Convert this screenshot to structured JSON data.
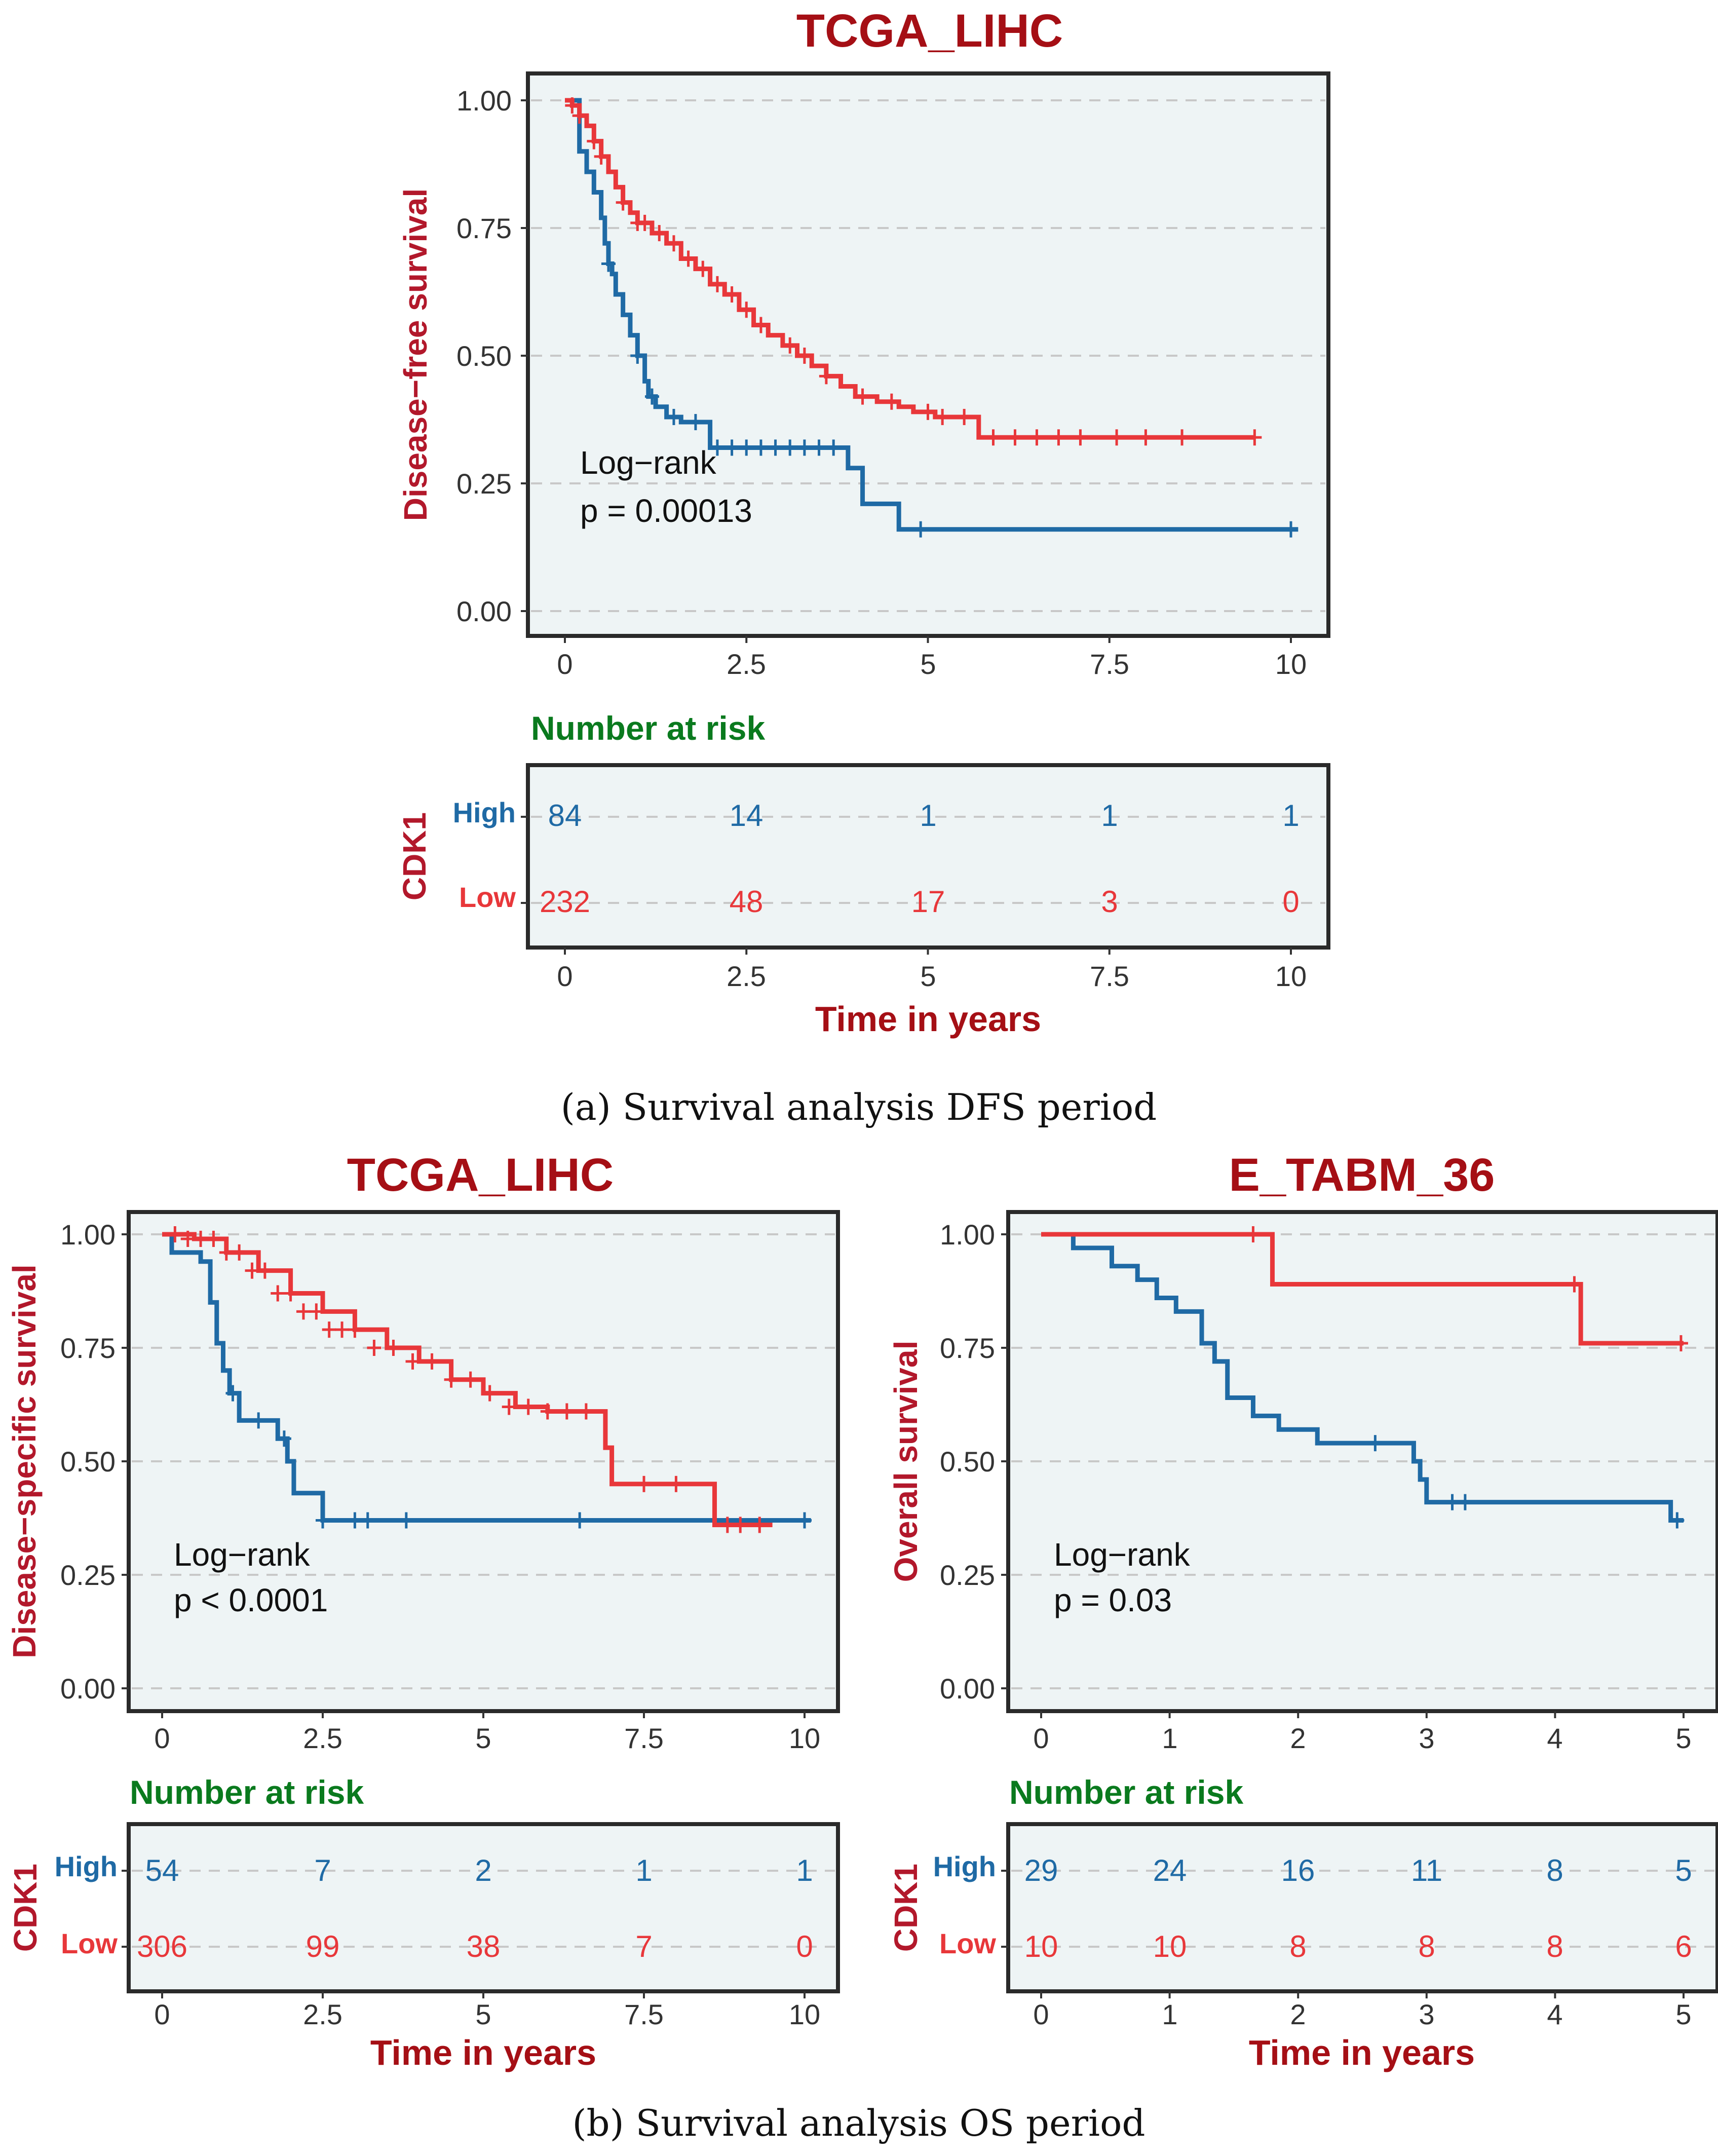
{
  "colors": {
    "high": "#1f6aa5",
    "low": "#e8373a",
    "title": "#a50f15",
    "number_at_risk": "#0a7a1e"
  },
  "captions": {
    "a": "(a) Survival analysis DFS period",
    "b": "(b) Survival analysis OS period"
  },
  "chart_data": [
    {
      "id": "dfs",
      "type": "line",
      "step": true,
      "title": "TCGA_LIHC",
      "xlabel": "Time in years",
      "ylabel": "Disease−free survival",
      "xlim": [
        0,
        10
      ],
      "ylim": [
        0,
        1
      ],
      "xticks": [
        "0",
        "2.5",
        "5",
        "7.5",
        "10"
      ],
      "xtick_values": [
        0,
        2.5,
        5,
        7.5,
        10
      ],
      "yticks": [
        "0.00",
        "0.25",
        "0.50",
        "0.75",
        "1.00"
      ],
      "ytick_values": [
        0,
        0.25,
        0.5,
        0.75,
        1
      ],
      "annotation": [
        "Log−rank",
        "p = 0.00013"
      ],
      "series": [
        {
          "name": "High",
          "color": "#1f6aa5",
          "x": [
            0,
            0.2,
            0.3,
            0.4,
            0.5,
            0.55,
            0.6,
            0.65,
            0.7,
            0.8,
            0.9,
            1.0,
            1.1,
            1.15,
            1.25,
            1.4,
            1.6,
            2.0,
            3.9,
            4.1,
            4.6,
            10.1
          ],
          "y": [
            1.0,
            0.9,
            0.86,
            0.82,
            0.77,
            0.72,
            0.68,
            0.66,
            0.62,
            0.58,
            0.54,
            0.5,
            0.45,
            0.42,
            0.4,
            0.38,
            0.37,
            0.32,
            0.28,
            0.21,
            0.16,
            0.16
          ],
          "censor_x": [
            0.6,
            1.0,
            1.2,
            1.5,
            1.8,
            2.1,
            2.3,
            2.5,
            2.7,
            2.9,
            3.1,
            3.3,
            3.5,
            3.7,
            4.9,
            10.0
          ],
          "censor_y": [
            0.68,
            0.5,
            0.42,
            0.38,
            0.37,
            0.32,
            0.32,
            0.32,
            0.32,
            0.32,
            0.32,
            0.32,
            0.32,
            0.32,
            0.16,
            0.16
          ]
        },
        {
          "name": "Low",
          "color": "#e8373a",
          "x": [
            0,
            0.1,
            0.2,
            0.3,
            0.4,
            0.5,
            0.6,
            0.7,
            0.8,
            0.9,
            1.0,
            1.2,
            1.4,
            1.6,
            1.8,
            2.0,
            2.2,
            2.4,
            2.6,
            2.8,
            3.0,
            3.2,
            3.4,
            3.6,
            3.8,
            4.0,
            4.3,
            4.6,
            4.8,
            5.1,
            5.4,
            5.7,
            9.5
          ],
          "y": [
            1.0,
            0.99,
            0.97,
            0.95,
            0.92,
            0.89,
            0.86,
            0.83,
            0.8,
            0.78,
            0.76,
            0.74,
            0.72,
            0.69,
            0.67,
            0.64,
            0.62,
            0.59,
            0.56,
            0.54,
            0.52,
            0.5,
            0.48,
            0.46,
            0.44,
            0.42,
            0.41,
            0.4,
            0.39,
            0.38,
            0.38,
            0.34,
            0.34
          ],
          "censor_x": [
            0.1,
            0.2,
            0.4,
            0.5,
            0.8,
            1.0,
            1.1,
            1.3,
            1.5,
            1.7,
            1.9,
            2.1,
            2.3,
            2.5,
            2.7,
            3.1,
            3.3,
            3.6,
            4.1,
            4.5,
            5.0,
            5.2,
            5.5,
            5.9,
            6.2,
            6.5,
            6.8,
            7.1,
            7.6,
            8.0,
            8.5,
            9.5
          ],
          "censor_y": [
            0.99,
            0.97,
            0.92,
            0.89,
            0.8,
            0.76,
            0.76,
            0.74,
            0.72,
            0.69,
            0.67,
            0.64,
            0.62,
            0.59,
            0.56,
            0.52,
            0.5,
            0.46,
            0.42,
            0.41,
            0.39,
            0.38,
            0.38,
            0.34,
            0.34,
            0.34,
            0.34,
            0.34,
            0.34,
            0.34,
            0.34,
            0.34
          ]
        }
      ],
      "risk_table": {
        "title": "Number at risk",
        "strata_label": "CDK1",
        "groups": [
          {
            "name": "High",
            "values": [
              "84",
              "14",
              "1",
              "1",
              "1"
            ]
          },
          {
            "name": "Low",
            "values": [
              "232",
              "48",
              "17",
              "3",
              "0"
            ]
          }
        ]
      }
    },
    {
      "id": "dss",
      "type": "line",
      "step": true,
      "title": "TCGA_LIHC",
      "xlabel": "Time in years",
      "ylabel": "Disease−specific survival",
      "xlim": [
        0,
        10
      ],
      "ylim": [
        0,
        1
      ],
      "xticks": [
        "0",
        "2.5",
        "5",
        "7.5",
        "10"
      ],
      "xtick_values": [
        0,
        2.5,
        5,
        7.5,
        10
      ],
      "yticks": [
        "0.00",
        "0.25",
        "0.50",
        "0.75",
        "1.00"
      ],
      "ytick_values": [
        0,
        0.25,
        0.5,
        0.75,
        1
      ],
      "annotation": [
        "Log−rank",
        "p < 0.0001"
      ],
      "series": [
        {
          "name": "High",
          "color": "#1f6aa5",
          "x": [
            0,
            0.15,
            0.6,
            0.75,
            0.85,
            0.95,
            1.05,
            1.2,
            1.8,
            1.95,
            2.05,
            2.5,
            10.1
          ],
          "y": [
            1.0,
            0.96,
            0.94,
            0.85,
            0.76,
            0.7,
            0.65,
            0.59,
            0.55,
            0.5,
            0.43,
            0.37,
            0.37
          ],
          "censor_x": [
            1.1,
            1.5,
            1.9,
            2.5,
            3.0,
            3.2,
            3.8,
            6.5,
            10.0
          ],
          "censor_y": [
            0.65,
            0.59,
            0.55,
            0.37,
            0.37,
            0.37,
            0.37,
            0.37,
            0.37
          ]
        },
        {
          "name": "Low",
          "color": "#e8373a",
          "x": [
            0,
            0.5,
            1.0,
            1.5,
            2.0,
            2.5,
            3.0,
            3.5,
            4.0,
            4.5,
            5.0,
            5.5,
            6.0,
            6.9,
            7.0,
            8.6,
            9.5
          ],
          "y": [
            1.0,
            0.99,
            0.96,
            0.92,
            0.87,
            0.83,
            0.79,
            0.75,
            0.72,
            0.68,
            0.65,
            0.62,
            0.61,
            0.53,
            0.45,
            0.36,
            0.36
          ],
          "censor_x": [
            0.2,
            0.4,
            0.6,
            0.8,
            1.0,
            1.2,
            1.4,
            1.6,
            1.8,
            2.0,
            2.2,
            2.4,
            2.6,
            2.8,
            3.0,
            3.3,
            3.6,
            3.9,
            4.2,
            4.5,
            4.8,
            5.1,
            5.4,
            5.7,
            6.0,
            6.3,
            6.6,
            7.5,
            8.0,
            8.8,
            9.0,
            9.3
          ],
          "censor_y": [
            1.0,
            0.99,
            0.99,
            0.99,
            0.96,
            0.96,
            0.92,
            0.92,
            0.87,
            0.87,
            0.83,
            0.83,
            0.79,
            0.79,
            0.79,
            0.75,
            0.75,
            0.72,
            0.72,
            0.68,
            0.68,
            0.65,
            0.62,
            0.62,
            0.61,
            0.61,
            0.61,
            0.45,
            0.45,
            0.36,
            0.36,
            0.36
          ]
        }
      ],
      "risk_table": {
        "title": "Number at risk",
        "strata_label": "CDK1",
        "groups": [
          {
            "name": "High",
            "values": [
              "54",
              "7",
              "2",
              "1",
              "1"
            ]
          },
          {
            "name": "Low",
            "values": [
              "306",
              "99",
              "38",
              "7",
              "0"
            ]
          }
        ]
      }
    },
    {
      "id": "os",
      "type": "line",
      "step": true,
      "title": "E_TABM_36",
      "xlabel": "Time in years",
      "ylabel": "Overall survival",
      "xlim": [
        0,
        5
      ],
      "ylim": [
        0,
        1
      ],
      "xticks": [
        "0",
        "1",
        "2",
        "3",
        "4",
        "5"
      ],
      "xtick_values": [
        0,
        1,
        2,
        3,
        4,
        5
      ],
      "yticks": [
        "0.00",
        "0.25",
        "0.50",
        "0.75",
        "1.00"
      ],
      "ytick_values": [
        0,
        0.25,
        0.5,
        0.75,
        1
      ],
      "annotation": [
        "Log−rank",
        "p = 0.03"
      ],
      "series": [
        {
          "name": "High",
          "color": "#1f6aa5",
          "x": [
            0,
            0.25,
            0.55,
            0.75,
            0.9,
            1.05,
            1.25,
            1.35,
            1.45,
            1.65,
            1.85,
            2.15,
            2.9,
            2.95,
            3.0,
            4.9,
            5.0
          ],
          "y": [
            1.0,
            0.97,
            0.93,
            0.9,
            0.86,
            0.83,
            0.76,
            0.72,
            0.64,
            0.6,
            0.57,
            0.54,
            0.5,
            0.46,
            0.41,
            0.37,
            0.37
          ],
          "censor_x": [
            2.6,
            3.2,
            3.3,
            4.95
          ],
          "censor_y": [
            0.54,
            0.41,
            0.41,
            0.37
          ]
        },
        {
          "name": "Low",
          "color": "#e8373a",
          "x": [
            0,
            1.8,
            4.2,
            5.0
          ],
          "y": [
            1.0,
            0.89,
            0.76,
            0.76
          ],
          "censor_x": [
            1.65,
            4.15,
            4.98
          ],
          "censor_y": [
            1.0,
            0.89,
            0.76
          ]
        }
      ],
      "risk_table": {
        "title": "Number at risk",
        "strata_label": "CDK1",
        "groups": [
          {
            "name": "High",
            "values": [
              "29",
              "24",
              "16",
              "11",
              "8",
              "5"
            ]
          },
          {
            "name": "Low",
            "values": [
              "10",
              "10",
              "8",
              "8",
              "8",
              "6"
            ]
          }
        ]
      }
    }
  ]
}
